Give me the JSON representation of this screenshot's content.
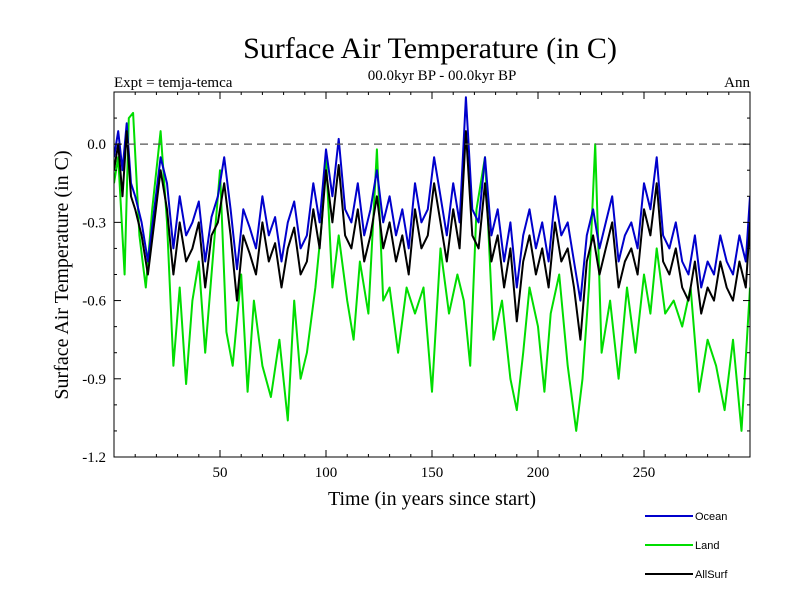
{
  "chart_data": {
    "type": "line",
    "title": "Surface Air Temperature (in C)",
    "subtitle": "00.0kyr BP - 00.0kyr BP",
    "expt_label": "Expt = temja-temca",
    "period_label": "Ann",
    "xlabel": "Time (in years since start)",
    "ylabel": "Surface Air Temperature (in C)",
    "xlim": [
      0,
      300
    ],
    "ylim": [
      -1.2,
      0.2
    ],
    "x_ticks": [
      50,
      100,
      150,
      200,
      250
    ],
    "x_tick_labels": [
      "50",
      "100",
      "150",
      "200",
      "250"
    ],
    "y_ticks": [
      0.0,
      -0.3,
      -0.6,
      -0.9,
      -1.2
    ],
    "y_tick_labels": [
      "0.0",
      "-0.3",
      "-0.6",
      "-0.9",
      "-1.2"
    ],
    "reference_line": 0.0,
    "legend": [
      {
        "name": "Ocean",
        "color": "#0000cc"
      },
      {
        "name": "Land",
        "color": "#00dd00"
      },
      {
        "name": "AllSurf",
        "color": "#000000"
      }
    ],
    "series": [
      {
        "name": "Land",
        "color": "#00dd00",
        "x": [
          0,
          2,
          5,
          7,
          9,
          12,
          15,
          18,
          22,
          25,
          28,
          31,
          34,
          37,
          40,
          43,
          46,
          50,
          53,
          56,
          60,
          63,
          66,
          70,
          74,
          78,
          82,
          85,
          88,
          91,
          95,
          98,
          100,
          103,
          106,
          110,
          113,
          116,
          120,
          124,
          127,
          130,
          134,
          138,
          142,
          146,
          150,
          154,
          158,
          162,
          165,
          168,
          171,
          175,
          179,
          183,
          187,
          190,
          193,
          196,
          200,
          203,
          206,
          210,
          214,
          218,
          221,
          224,
          227,
          230,
          234,
          238,
          242,
          246,
          250,
          253,
          256,
          260,
          264,
          268,
          272,
          276,
          280,
          284,
          288,
          292,
          296,
          300
        ],
        "values": [
          -0.15,
          -0.05,
          -0.5,
          0.1,
          0.12,
          -0.35,
          -0.55,
          -0.25,
          0.05,
          -0.3,
          -0.85,
          -0.55,
          -0.92,
          -0.6,
          -0.45,
          -0.8,
          -0.5,
          -0.1,
          -0.72,
          -0.85,
          -0.5,
          -0.95,
          -0.6,
          -0.85,
          -0.97,
          -0.75,
          -1.06,
          -0.6,
          -0.9,
          -0.8,
          -0.55,
          -0.3,
          -0.05,
          -0.55,
          -0.35,
          -0.6,
          -0.75,
          -0.45,
          -0.65,
          -0.02,
          -0.6,
          -0.55,
          -0.8,
          -0.55,
          -0.65,
          -0.55,
          -0.95,
          -0.4,
          -0.65,
          -0.5,
          -0.6,
          -0.85,
          -0.25,
          -0.05,
          -0.75,
          -0.6,
          -0.9,
          -1.02,
          -0.8,
          -0.55,
          -0.7,
          -0.95,
          -0.65,
          -0.5,
          -0.85,
          -1.1,
          -0.9,
          -0.55,
          0.0,
          -0.8,
          -0.6,
          -0.9,
          -0.55,
          -0.8,
          -0.5,
          -0.65,
          -0.4,
          -0.65,
          -0.6,
          -0.7,
          -0.55,
          -0.95,
          -0.75,
          -0.85,
          -1.02,
          -0.75,
          -1.1,
          -0.55
        ]
      },
      {
        "name": "Ocean",
        "color": "#0000cc",
        "x": [
          0,
          2,
          4,
          6,
          8,
          10,
          13,
          16,
          19,
          22,
          25,
          28,
          31,
          34,
          37,
          40,
          43,
          46,
          49,
          52,
          55,
          58,
          61,
          64,
          67,
          70,
          73,
          76,
          79,
          82,
          85,
          88,
          91,
          94,
          97,
          100,
          103,
          106,
          109,
          112,
          115,
          118,
          121,
          124,
          127,
          130,
          133,
          136,
          139,
          142,
          145,
          148,
          151,
          154,
          157,
          160,
          163,
          166,
          169,
          172,
          175,
          178,
          181,
          184,
          187,
          190,
          193,
          196,
          199,
          202,
          205,
          208,
          211,
          214,
          217,
          220,
          223,
          226,
          229,
          232,
          235,
          238,
          241,
          244,
          247,
          250,
          253,
          256,
          259,
          262,
          265,
          268,
          271,
          274,
          277,
          280,
          283,
          286,
          289,
          292,
          295,
          298,
          300
        ],
        "values": [
          -0.05,
          0.05,
          -0.1,
          0.08,
          -0.15,
          -0.2,
          -0.3,
          -0.45,
          -0.25,
          -0.05,
          -0.15,
          -0.4,
          -0.2,
          -0.35,
          -0.3,
          -0.22,
          -0.45,
          -0.28,
          -0.2,
          -0.05,
          -0.25,
          -0.48,
          -0.25,
          -0.32,
          -0.4,
          -0.2,
          -0.35,
          -0.28,
          -0.45,
          -0.3,
          -0.22,
          -0.4,
          -0.35,
          -0.15,
          -0.3,
          -0.02,
          -0.2,
          0.02,
          -0.25,
          -0.3,
          -0.15,
          -0.35,
          -0.25,
          -0.1,
          -0.3,
          -0.2,
          -0.35,
          -0.25,
          -0.4,
          -0.15,
          -0.3,
          -0.25,
          -0.05,
          -0.2,
          -0.35,
          -0.15,
          -0.3,
          0.18,
          -0.25,
          -0.3,
          -0.05,
          -0.35,
          -0.25,
          -0.45,
          -0.3,
          -0.55,
          -0.35,
          -0.25,
          -0.4,
          -0.3,
          -0.45,
          -0.2,
          -0.35,
          -0.3,
          -0.45,
          -0.6,
          -0.35,
          -0.25,
          -0.4,
          -0.3,
          -0.2,
          -0.45,
          -0.35,
          -0.3,
          -0.4,
          -0.15,
          -0.25,
          -0.05,
          -0.35,
          -0.4,
          -0.3,
          -0.45,
          -0.5,
          -0.35,
          -0.55,
          -0.45,
          -0.5,
          -0.35,
          -0.45,
          -0.5,
          -0.35,
          -0.45,
          -0.2
        ]
      },
      {
        "name": "AllSurf",
        "color": "#000000",
        "x": [
          0,
          2,
          4,
          6,
          8,
          10,
          13,
          16,
          19,
          22,
          25,
          28,
          31,
          34,
          37,
          40,
          43,
          46,
          49,
          52,
          55,
          58,
          61,
          64,
          67,
          70,
          73,
          76,
          79,
          82,
          85,
          88,
          91,
          94,
          97,
          100,
          103,
          106,
          109,
          112,
          115,
          118,
          121,
          124,
          127,
          130,
          133,
          136,
          139,
          142,
          145,
          148,
          151,
          154,
          157,
          160,
          163,
          166,
          169,
          172,
          175,
          178,
          181,
          184,
          187,
          190,
          193,
          196,
          199,
          202,
          205,
          208,
          211,
          214,
          217,
          220,
          223,
          226,
          229,
          232,
          235,
          238,
          241,
          244,
          247,
          250,
          253,
          256,
          259,
          262,
          265,
          268,
          271,
          274,
          277,
          280,
          283,
          286,
          289,
          292,
          295,
          298,
          300
        ],
        "values": [
          -0.1,
          0.0,
          -0.2,
          0.05,
          -0.2,
          -0.25,
          -0.35,
          -0.5,
          -0.3,
          -0.1,
          -0.25,
          -0.5,
          -0.3,
          -0.45,
          -0.4,
          -0.3,
          -0.55,
          -0.35,
          -0.3,
          -0.15,
          -0.35,
          -0.6,
          -0.35,
          -0.42,
          -0.5,
          -0.3,
          -0.45,
          -0.38,
          -0.55,
          -0.4,
          -0.32,
          -0.5,
          -0.45,
          -0.25,
          -0.4,
          -0.1,
          -0.3,
          -0.08,
          -0.35,
          -0.4,
          -0.25,
          -0.45,
          -0.35,
          -0.2,
          -0.4,
          -0.3,
          -0.45,
          -0.35,
          -0.5,
          -0.25,
          -0.4,
          -0.35,
          -0.15,
          -0.3,
          -0.45,
          -0.25,
          -0.4,
          0.05,
          -0.35,
          -0.4,
          -0.15,
          -0.45,
          -0.35,
          -0.55,
          -0.4,
          -0.68,
          -0.45,
          -0.35,
          -0.5,
          -0.4,
          -0.55,
          -0.3,
          -0.45,
          -0.4,
          -0.55,
          -0.75,
          -0.45,
          -0.35,
          -0.5,
          -0.4,
          -0.3,
          -0.55,
          -0.45,
          -0.4,
          -0.5,
          -0.25,
          -0.35,
          -0.15,
          -0.45,
          -0.5,
          -0.4,
          -0.55,
          -0.6,
          -0.45,
          -0.65,
          -0.55,
          -0.6,
          -0.45,
          -0.55,
          -0.6,
          -0.45,
          -0.55,
          -0.3
        ]
      }
    ]
  }
}
